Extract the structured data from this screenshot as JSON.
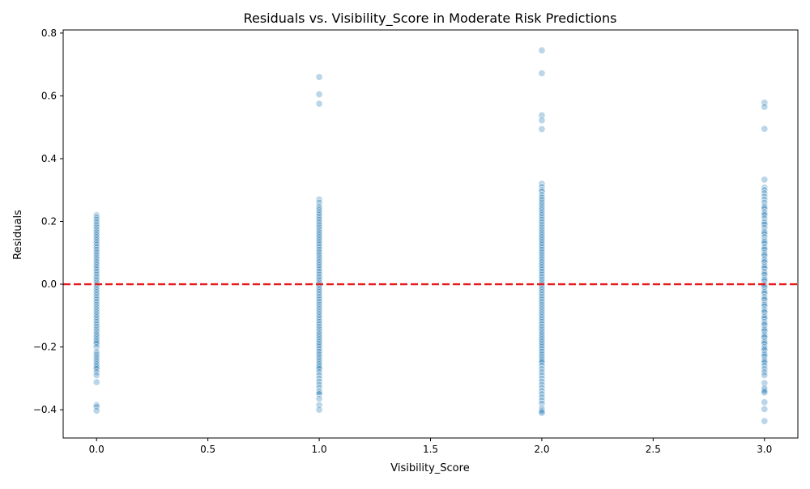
{
  "chart_data": {
    "type": "scatter",
    "title": "Residuals vs. Visibility_Score in Moderate Risk Predictions",
    "xlabel": "Visibility_Score",
    "ylabel": "Residuals",
    "xlim": [
      -0.15,
      3.15
    ],
    "ylim": [
      -0.49,
      0.81
    ],
    "xticks": [
      0.0,
      0.5,
      1.0,
      1.5,
      2.0,
      2.5,
      3.0
    ],
    "xtick_labels": [
      "0.0",
      "0.5",
      "1.0",
      "1.5",
      "2.0",
      "2.5",
      "3.0"
    ],
    "yticks": [
      -0.4,
      -0.2,
      0.0,
      0.2,
      0.4,
      0.6,
      0.8
    ],
    "ytick_labels": [
      "−0.4",
      "−0.2",
      "0.0",
      "0.2",
      "0.4",
      "0.6",
      "0.8"
    ],
    "reference_line": {
      "y": 0.0,
      "color": "#e41a1c",
      "style": "dashed"
    },
    "grid": false,
    "point_color": "#1f77b4",
    "point_alpha": 0.3,
    "series": [
      {
        "x_value": 0,
        "values": [
          0.22,
          0.215,
          0.21,
          0.205,
          0.2,
          0.195,
          0.19,
          0.185,
          0.18,
          0.175,
          0.17,
          0.165,
          0.16,
          0.155,
          0.15,
          0.145,
          0.14,
          0.135,
          0.13,
          0.125,
          0.12,
          0.115,
          0.11,
          0.105,
          0.1,
          0.095,
          0.09,
          0.085,
          0.08,
          0.075,
          0.07,
          0.065,
          0.06,
          0.055,
          0.05,
          0.045,
          0.04,
          0.035,
          0.03,
          0.025,
          0.02,
          0.015,
          0.01,
          0.005,
          0.0,
          -0.005,
          -0.01,
          -0.015,
          -0.02,
          -0.025,
          -0.03,
          -0.035,
          -0.04,
          -0.045,
          -0.05,
          -0.055,
          -0.06,
          -0.065,
          -0.07,
          -0.075,
          -0.08,
          -0.085,
          -0.09,
          -0.095,
          -0.1,
          -0.105,
          -0.11,
          -0.115,
          -0.12,
          -0.125,
          -0.13,
          -0.135,
          -0.14,
          -0.145,
          -0.15,
          -0.155,
          -0.16,
          -0.165,
          -0.17,
          -0.175,
          -0.18,
          -0.185,
          -0.19,
          -0.2,
          -0.215,
          -0.22,
          -0.225,
          -0.23,
          -0.235,
          -0.24,
          -0.245,
          -0.25,
          -0.255,
          -0.26,
          -0.265,
          -0.27,
          -0.28,
          -0.29,
          -0.312,
          -0.385,
          -0.39,
          -0.403
        ]
      },
      {
        "x_value": 1,
        "values": [
          0.66,
          0.605,
          0.575,
          0.27,
          0.26,
          0.25,
          0.245,
          0.24,
          0.235,
          0.23,
          0.225,
          0.22,
          0.215,
          0.21,
          0.205,
          0.2,
          0.195,
          0.19,
          0.185,
          0.18,
          0.175,
          0.17,
          0.165,
          0.16,
          0.155,
          0.15,
          0.145,
          0.14,
          0.135,
          0.13,
          0.125,
          0.12,
          0.115,
          0.11,
          0.105,
          0.1,
          0.095,
          0.09,
          0.085,
          0.08,
          0.075,
          0.07,
          0.065,
          0.06,
          0.055,
          0.05,
          0.045,
          0.04,
          0.035,
          0.03,
          0.025,
          0.02,
          0.015,
          0.01,
          0.005,
          0.0,
          -0.005,
          -0.01,
          -0.015,
          -0.02,
          -0.025,
          -0.03,
          -0.035,
          -0.04,
          -0.045,
          -0.05,
          -0.055,
          -0.06,
          -0.065,
          -0.07,
          -0.075,
          -0.08,
          -0.085,
          -0.09,
          -0.095,
          -0.1,
          -0.105,
          -0.11,
          -0.115,
          -0.12,
          -0.125,
          -0.13,
          -0.135,
          -0.14,
          -0.145,
          -0.15,
          -0.155,
          -0.16,
          -0.165,
          -0.17,
          -0.175,
          -0.18,
          -0.185,
          -0.19,
          -0.195,
          -0.2,
          -0.205,
          -0.21,
          -0.215,
          -0.22,
          -0.225,
          -0.23,
          -0.235,
          -0.24,
          -0.245,
          -0.25,
          -0.255,
          -0.26,
          -0.265,
          -0.27,
          -0.28,
          -0.29,
          -0.3,
          -0.31,
          -0.32,
          -0.33,
          -0.34,
          -0.345,
          -0.35,
          -0.365,
          -0.385,
          -0.4
        ]
      },
      {
        "x_value": 2,
        "values": [
          0.745,
          0.672,
          0.538,
          0.522,
          0.494,
          0.32,
          0.31,
          0.3,
          0.295,
          0.285,
          0.28,
          0.275,
          0.27,
          0.265,
          0.26,
          0.255,
          0.25,
          0.245,
          0.24,
          0.235,
          0.23,
          0.225,
          0.22,
          0.215,
          0.21,
          0.205,
          0.2,
          0.195,
          0.19,
          0.185,
          0.18,
          0.175,
          0.17,
          0.165,
          0.16,
          0.155,
          0.15,
          0.145,
          0.14,
          0.135,
          0.13,
          0.125,
          0.12,
          0.115,
          0.11,
          0.105,
          0.1,
          0.095,
          0.09,
          0.085,
          0.08,
          0.075,
          0.07,
          0.065,
          0.06,
          0.055,
          0.05,
          0.045,
          0.04,
          0.035,
          0.03,
          0.025,
          0.02,
          0.015,
          0.01,
          0.005,
          0.0,
          -0.005,
          -0.01,
          -0.015,
          -0.02,
          -0.025,
          -0.03,
          -0.035,
          -0.04,
          -0.045,
          -0.05,
          -0.055,
          -0.06,
          -0.065,
          -0.07,
          -0.075,
          -0.08,
          -0.085,
          -0.09,
          -0.095,
          -0.1,
          -0.105,
          -0.11,
          -0.115,
          -0.12,
          -0.125,
          -0.13,
          -0.135,
          -0.14,
          -0.145,
          -0.15,
          -0.155,
          -0.16,
          -0.165,
          -0.17,
          -0.175,
          -0.18,
          -0.185,
          -0.19,
          -0.195,
          -0.2,
          -0.205,
          -0.21,
          -0.215,
          -0.22,
          -0.225,
          -0.23,
          -0.235,
          -0.24,
          -0.245,
          -0.25,
          -0.26,
          -0.27,
          -0.28,
          -0.29,
          -0.3,
          -0.31,
          -0.32,
          -0.33,
          -0.34,
          -0.35,
          -0.36,
          -0.37,
          -0.38,
          -0.395,
          -0.4,
          -0.405,
          -0.41
        ]
      },
      {
        "x_value": 3,
        "values": [
          0.578,
          0.565,
          0.495,
          0.333,
          0.308,
          0.3,
          0.29,
          0.28,
          0.27,
          0.26,
          0.25,
          0.245,
          0.24,
          0.23,
          0.225,
          0.22,
          0.21,
          0.2,
          0.195,
          0.19,
          0.18,
          0.17,
          0.165,
          0.16,
          0.15,
          0.14,
          0.135,
          0.13,
          0.12,
          0.115,
          0.11,
          0.1,
          0.095,
          0.09,
          0.08,
          0.075,
          0.07,
          0.06,
          0.055,
          0.05,
          0.04,
          0.035,
          0.03,
          0.02,
          0.015,
          0.01,
          0.0,
          -0.005,
          -0.01,
          -0.02,
          -0.025,
          -0.03,
          -0.04,
          -0.045,
          -0.05,
          -0.06,
          -0.065,
          -0.07,
          -0.08,
          -0.085,
          -0.09,
          -0.1,
          -0.105,
          -0.11,
          -0.12,
          -0.125,
          -0.13,
          -0.14,
          -0.145,
          -0.15,
          -0.16,
          -0.165,
          -0.17,
          -0.18,
          -0.185,
          -0.19,
          -0.2,
          -0.205,
          -0.21,
          -0.22,
          -0.225,
          -0.23,
          -0.24,
          -0.245,
          -0.25,
          -0.26,
          -0.27,
          -0.28,
          -0.29,
          -0.315,
          -0.33,
          -0.335,
          -0.34,
          -0.345,
          -0.376,
          -0.398,
          -0.436
        ]
      }
    ]
  }
}
